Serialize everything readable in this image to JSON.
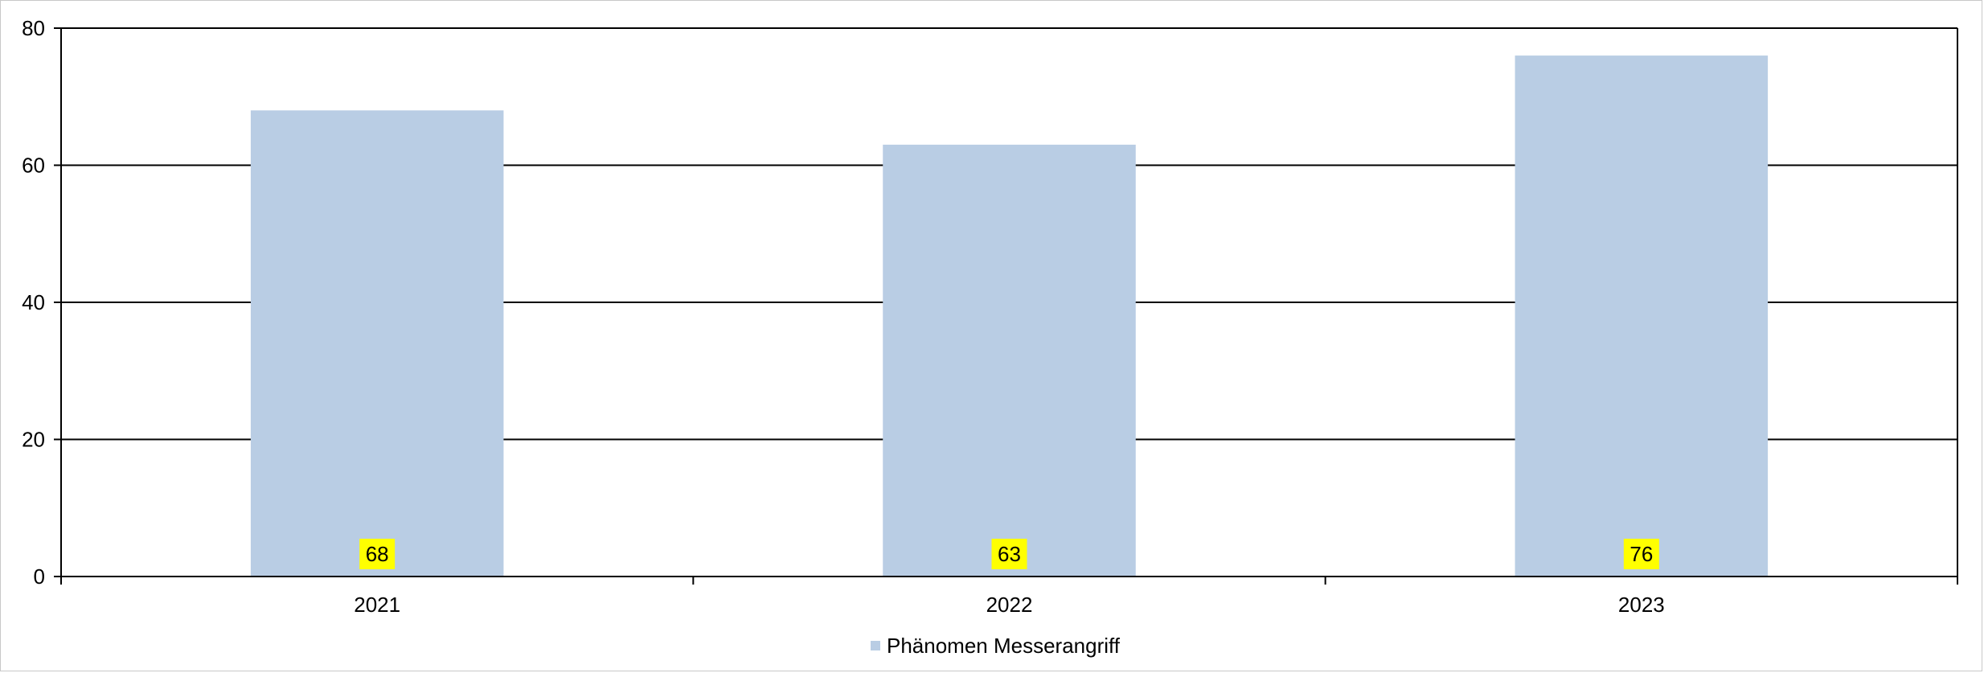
{
  "chart_data": {
    "type": "bar",
    "categories": [
      "2021",
      "2022",
      "2023"
    ],
    "series": [
      {
        "name": "Phänomen Messerangriff",
        "values": [
          68,
          63,
          76
        ]
      }
    ],
    "title": "",
    "xlabel": "",
    "ylabel": "",
    "ylim": [
      0,
      80
    ],
    "yticks": [
      "0",
      "20",
      "40",
      "60",
      "80"
    ],
    "grid": true,
    "legend": "bottom-center",
    "data_labels": [
      "68",
      "63",
      "76"
    ],
    "colors": {
      "bar": "#b9cde4",
      "data_label_bg": "#ffff00",
      "grid": "#000000",
      "axis": "#000000",
      "frame": "#c8c8c8"
    }
  }
}
